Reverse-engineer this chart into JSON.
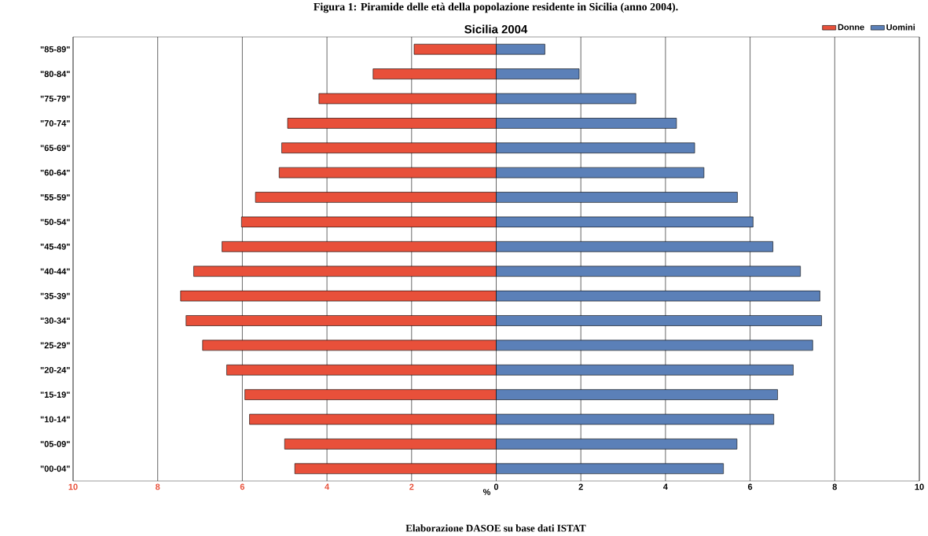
{
  "chart_data": {
    "type": "bar",
    "orientation": "horizontal",
    "title": "Figura 1: Piramide delle età della popolazione residente in Sicilia (anno 2004).",
    "subtitle": "Sicilia 2004",
    "xlabel": "%",
    "annotations": [
      "Elaborazione DASOE su base dati ISTAT"
    ],
    "categories": [
      "\"85-89\"",
      "\"80-84\"",
      "\"75-79\"",
      "\"70-74\"",
      "\"65-69\"",
      "\"60-64\"",
      "\"55-59\"",
      "\"50-54\"",
      "\"45-49\"",
      "\"40-44\"",
      "\"35-39\"",
      "\"30-34\"",
      "\"25-29\"",
      "\"20-24\"",
      "\"15-19\"",
      "\"10-14\"",
      "\"05-09\"",
      "\"00-04\""
    ],
    "series": [
      {
        "name": "Donne",
        "color": "#e8503a",
        "values": [
          -1.94,
          -2.91,
          -4.19,
          -4.93,
          -5.07,
          -5.13,
          -5.69,
          -6.02,
          -6.48,
          -7.15,
          -7.46,
          -7.33,
          -6.94,
          -6.37,
          -5.94,
          -5.83,
          -5.0,
          -4.76
        ]
      },
      {
        "name": "Uomini",
        "color": "#5b80b8",
        "values": [
          1.15,
          1.96,
          3.3,
          4.26,
          4.69,
          4.91,
          5.7,
          6.07,
          6.54,
          7.19,
          7.65,
          7.69,
          7.48,
          7.02,
          6.65,
          6.56,
          5.69,
          5.37
        ]
      }
    ],
    "xlim": [
      -10,
      10
    ],
    "xticks": [
      {
        "value": -10,
        "label": "10"
      },
      {
        "value": -8,
        "label": "8"
      },
      {
        "value": -6,
        "label": "6"
      },
      {
        "value": -4,
        "label": "4"
      },
      {
        "value": -2,
        "label": "2"
      },
      0,
      2,
      4,
      6,
      8,
      10
    ],
    "grid": "x",
    "legend": "top right",
    "stacked": true
  }
}
